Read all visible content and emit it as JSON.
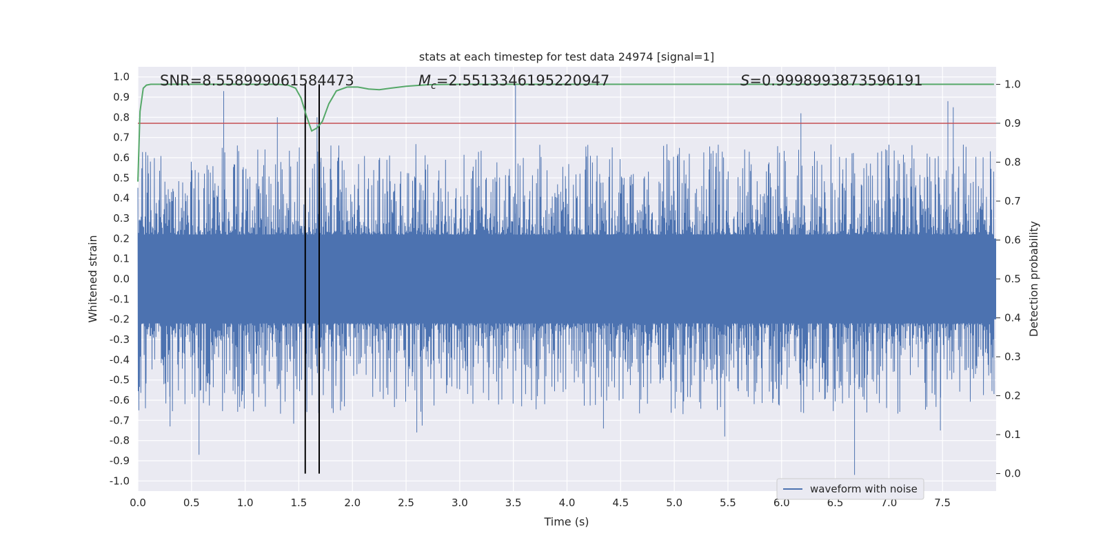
{
  "chart_data": {
    "type": "line",
    "title": "stats at each timestep for test data 24974 [signal=1]",
    "xlabel": "Time (s)",
    "ylabel_left": "Whitened strain",
    "ylabel_right": "Detection probability",
    "xlim": [
      0.0,
      8.0
    ],
    "ylim_left": [
      -1.05,
      1.05
    ],
    "ylim_right": [
      -0.045,
      1.045
    ],
    "x_ticks": [
      "0.0",
      "0.5",
      "1.0",
      "1.5",
      "2.0",
      "2.5",
      "3.0",
      "3.5",
      "4.0",
      "4.5",
      "5.0",
      "5.5",
      "6.0",
      "6.5",
      "7.0",
      "7.5"
    ],
    "y_ticks_left": [
      "1.0",
      "0.9",
      "0.8",
      "0.7",
      "0.6",
      "0.5",
      "0.4",
      "0.3",
      "0.2",
      "0.1",
      "0.0",
      "-0.1",
      "-0.2",
      "-0.3",
      "-0.4",
      "-0.5",
      "-0.6",
      "-0.7",
      "-0.8",
      "-0.9",
      "-1.0"
    ],
    "y_ticks_right": [
      "1.0",
      "0.9",
      "0.8",
      "0.7",
      "0.6",
      "0.5",
      "0.4",
      "0.3",
      "0.2",
      "0.1",
      "0.0"
    ],
    "annotations": {
      "snr": "SNR=8.558999061584473",
      "mc_symbol": "M",
      "mc_sub": "c",
      "mc_value": "=2.5513346195220947",
      "s_symbol": "S",
      "s_value": "=0.9998993873596191"
    },
    "grid": true,
    "legend_position": "bottom-right",
    "legend_label": "waveform with noise",
    "waveform": {
      "name": "waveform with noise",
      "color": "#4c72b0",
      "band": [
        -0.2,
        0.2
      ],
      "peaks": [
        {
          "x": 0.8,
          "y": 0.93
        },
        {
          "x": 3.52,
          "y": 0.96
        },
        {
          "x": 6.18,
          "y": 0.82
        },
        {
          "x": 7.55,
          "y": 0.88
        },
        {
          "x": 7.6,
          "y": 0.85
        },
        {
          "x": 1.67,
          "y": 0.8
        },
        {
          "x": 1.3,
          "y": 0.8
        },
        {
          "x": 0.57,
          "y": -0.87
        },
        {
          "x": 6.68,
          "y": -0.97
        },
        {
          "x": 5.47,
          "y": -0.78
        },
        {
          "x": 0.3,
          "y": -0.73
        },
        {
          "x": 7.48,
          "y": -0.75
        },
        {
          "x": 4.34,
          "y": -0.74
        },
        {
          "x": 2.6,
          "y": -0.76
        }
      ]
    },
    "threshold": {
      "value": 0.9,
      "color": "#c44e52"
    },
    "detection_probability": {
      "color": "#55a868",
      "x": [
        0.0,
        0.02,
        0.05,
        0.08,
        0.12,
        0.2,
        0.5,
        1.0,
        1.3,
        1.4,
        1.47,
        1.52,
        1.57,
        1.62,
        1.67,
        1.72,
        1.78,
        1.85,
        1.95,
        2.05,
        2.15,
        2.25,
        2.35,
        2.5,
        2.7,
        3.0,
        7.98
      ],
      "y": [
        0.75,
        0.93,
        0.99,
        0.998,
        1.0,
        1.0,
        1.0,
        1.0,
        1.0,
        0.998,
        0.99,
        0.965,
        0.92,
        0.88,
        0.888,
        0.905,
        0.95,
        0.983,
        0.993,
        0.993,
        0.988,
        0.986,
        0.99,
        0.995,
        0.999,
        1.0,
        1.0
      ]
    },
    "vlines": {
      "color": "#000000",
      "x": [
        1.56,
        1.69
      ],
      "y_range": [
        0.0,
        1.0
      ]
    }
  }
}
